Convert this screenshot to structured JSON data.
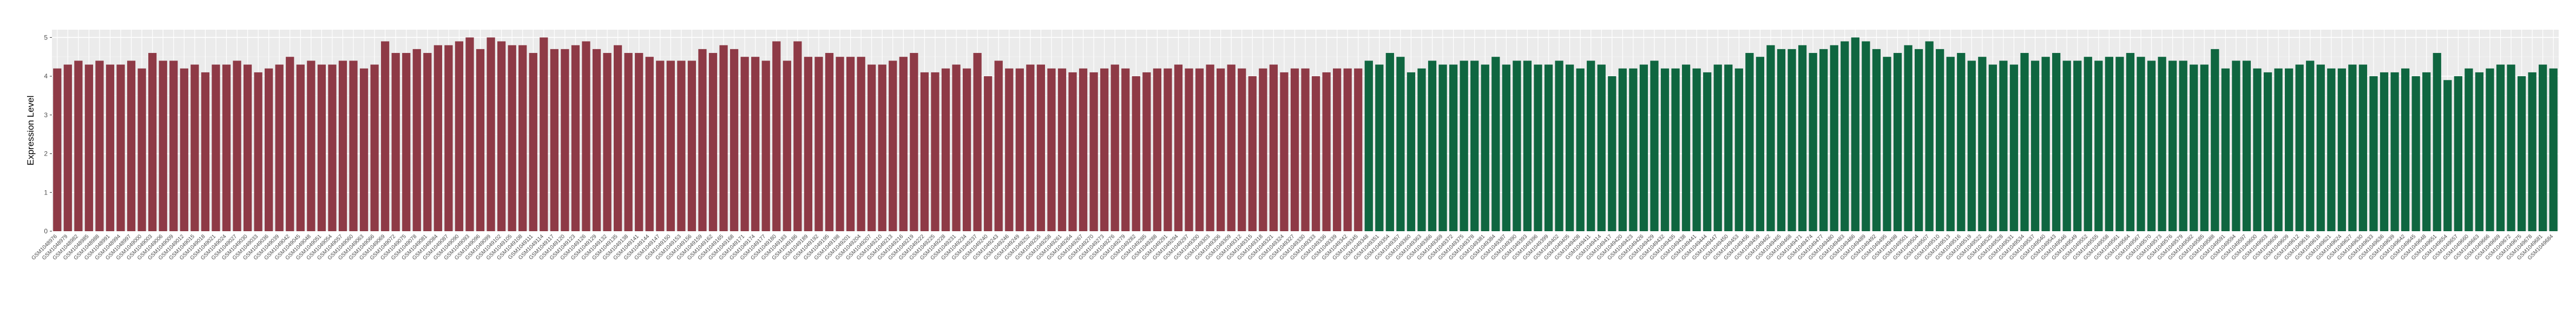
{
  "chart_data": {
    "type": "bar",
    "title": "",
    "xlabel": "",
    "ylabel": "Expression Level",
    "ylim": [
      0,
      5.2
    ],
    "yticks": [
      0,
      1,
      2,
      3,
      4,
      5
    ],
    "grid": true,
    "legend": "none",
    "sample_prefix": "GSM1",
    "sample_start": 48976,
    "colors": {
      "group_a": "#8e3a46",
      "group_b": "#0f6640",
      "panel_bg": "#ebebeb",
      "grid_major": "#ffffff",
      "grid_minor": "#f4f4f4"
    },
    "series": [
      {
        "name": "",
        "color_key": "group_a",
        "values": [
          4.2,
          4.3,
          4.4,
          4.3,
          4.4,
          4.3,
          4.3,
          4.4,
          4.2,
          4.6,
          4.4,
          4.4,
          4.2,
          4.3,
          4.1,
          4.3,
          4.3,
          4.4,
          4.3,
          4.1,
          4.2,
          4.3,
          4.5,
          4.3,
          4.4,
          4.3,
          4.3,
          4.4,
          4.4,
          4.2,
          4.3,
          4.9,
          4.6,
          4.6,
          4.7,
          4.6,
          4.8,
          4.8,
          4.9,
          5.0,
          4.7,
          5.0,
          4.9,
          4.8,
          4.8,
          4.6,
          5.0,
          4.7,
          4.7,
          4.8,
          4.9,
          4.7,
          4.6,
          4.8,
          4.6,
          4.6,
          4.5,
          4.4,
          4.4,
          4.4,
          4.4,
          4.7,
          4.6,
          4.8,
          4.7,
          4.5,
          4.5,
          4.4,
          4.9,
          4.4,
          4.9,
          4.5,
          4.5,
          4.6,
          4.5,
          4.5,
          4.5,
          4.3,
          4.3,
          4.4,
          4.5,
          4.6,
          4.1,
          4.1,
          4.2,
          4.3,
          4.2,
          4.6,
          4.0,
          4.4,
          4.2,
          4.2,
          4.3,
          4.3,
          4.2,
          4.2,
          4.1,
          4.2,
          4.1,
          4.2,
          4.3,
          4.2,
          4.0,
          4.1,
          4.2,
          4.2,
          4.3,
          4.2,
          4.2,
          4.3,
          4.2,
          4.3,
          4.2,
          4.0,
          4.2,
          4.3,
          4.1,
          4.2,
          4.2,
          4.0,
          4.1,
          4.2,
          4.2,
          4.2
        ]
      },
      {
        "name": "",
        "color_key": "group_b",
        "values": [
          4.4,
          4.3,
          4.6,
          4.5,
          4.1,
          4.2,
          4.4,
          4.3,
          4.3,
          4.4,
          4.4,
          4.3,
          4.5,
          4.3,
          4.4,
          4.4,
          4.3,
          4.3,
          4.4,
          4.3,
          4.2,
          4.4,
          4.3,
          4.0,
          4.2,
          4.2,
          4.3,
          4.4,
          4.2,
          4.2,
          4.3,
          4.2,
          4.1,
          4.3,
          4.3,
          4.2,
          4.6,
          4.5,
          4.8,
          4.7,
          4.7,
          4.8,
          4.6,
          4.7,
          4.8,
          4.9,
          5.0,
          4.9,
          4.7,
          4.5,
          4.6,
          4.8,
          4.7,
          4.9,
          4.7,
          4.5,
          4.6,
          4.4,
          4.5,
          4.3,
          4.4,
          4.3,
          4.6,
          4.4,
          4.5,
          4.6,
          4.4,
          4.4,
          4.5,
          4.4,
          4.5,
          4.5,
          4.6,
          4.5,
          4.4,
          4.5,
          4.4,
          4.4,
          4.3,
          4.3,
          4.7,
          4.2,
          4.4,
          4.4,
          4.2,
          4.1,
          4.2,
          4.2,
          4.3,
          4.4,
          4.3,
          4.2,
          4.2,
          4.3,
          4.3,
          4.0,
          4.1,
          4.1,
          4.2,
          4.0,
          4.1,
          4.6,
          3.9,
          4.0,
          4.2,
          4.1,
          4.2,
          4.3,
          4.3,
          4.0,
          4.1,
          4.3,
          4.2
        ]
      }
    ]
  }
}
